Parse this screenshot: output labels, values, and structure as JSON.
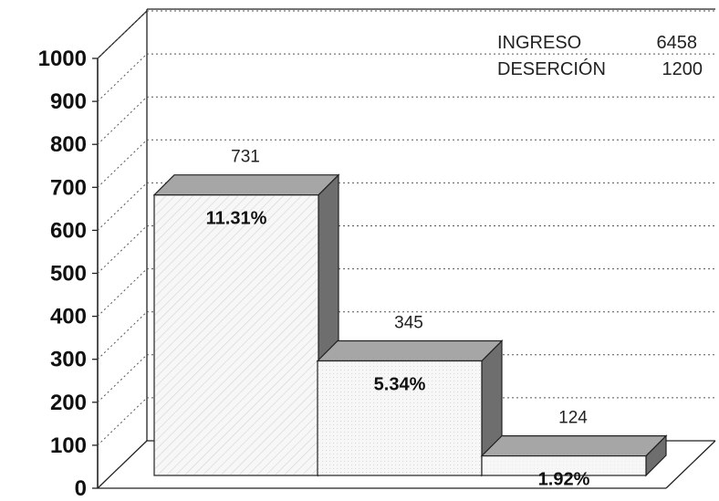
{
  "chart_data": {
    "type": "bar",
    "style": "3d-stepped",
    "title": "",
    "xlabel": "",
    "ylabel": "",
    "categories": [
      "",
      "",
      ""
    ],
    "values": [
      731,
      345,
      124
    ],
    "value_labels": [
      "731",
      "345",
      "124"
    ],
    "percent_labels": [
      "11.31%",
      "5.34%",
      "1.92%"
    ],
    "ylim": [
      0,
      1000
    ],
    "yticks": [
      "0",
      "100",
      "200",
      "300",
      "400",
      "500",
      "600",
      "700",
      "800",
      "900",
      "1000"
    ],
    "grid": true,
    "annotations": [
      {
        "label": "INGRESO",
        "value": "6458"
      },
      {
        "label": "DESERCIÓN",
        "value": "1200"
      }
    ],
    "colors": {
      "front": "#f7f7f7",
      "top": "#a6a6a6",
      "side": "#6e6e6e",
      "hatch": "#cfcfcf"
    }
  }
}
